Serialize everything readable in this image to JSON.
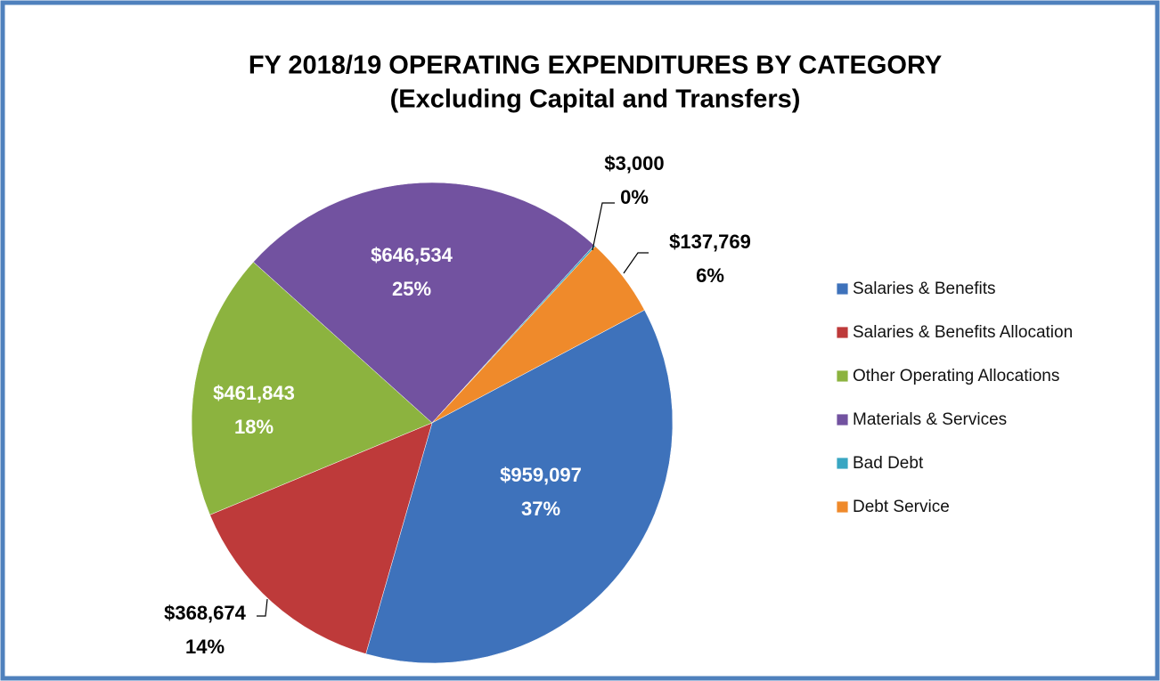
{
  "chart_data": {
    "type": "pie",
    "title": "FY 2018/19  OPERATING EXPENDITURES BY CATEGORY",
    "subtitle": "(Excluding Capital and Transfers)",
    "categories": [
      "Salaries & Benefits",
      "Salaries & Benefits Allocation",
      "Other Operating Allocations",
      "Materials & Services",
      "Bad Debt",
      "Debt Service"
    ],
    "values": [
      959097,
      368674,
      461843,
      646534,
      3000,
      137769
    ],
    "value_labels": [
      "$959,097",
      "$368,674",
      "$461,843",
      "$646,534",
      "$3,000",
      "$137,769"
    ],
    "percent_labels": [
      "37%",
      "14%",
      "18%",
      "25%",
      "0%",
      "6%"
    ],
    "colors": [
      "#3e72bb",
      "#be3a3a",
      "#8cb33f",
      "#7252a0",
      "#38a6c2",
      "#ef8a2b"
    ],
    "legend": "right"
  }
}
